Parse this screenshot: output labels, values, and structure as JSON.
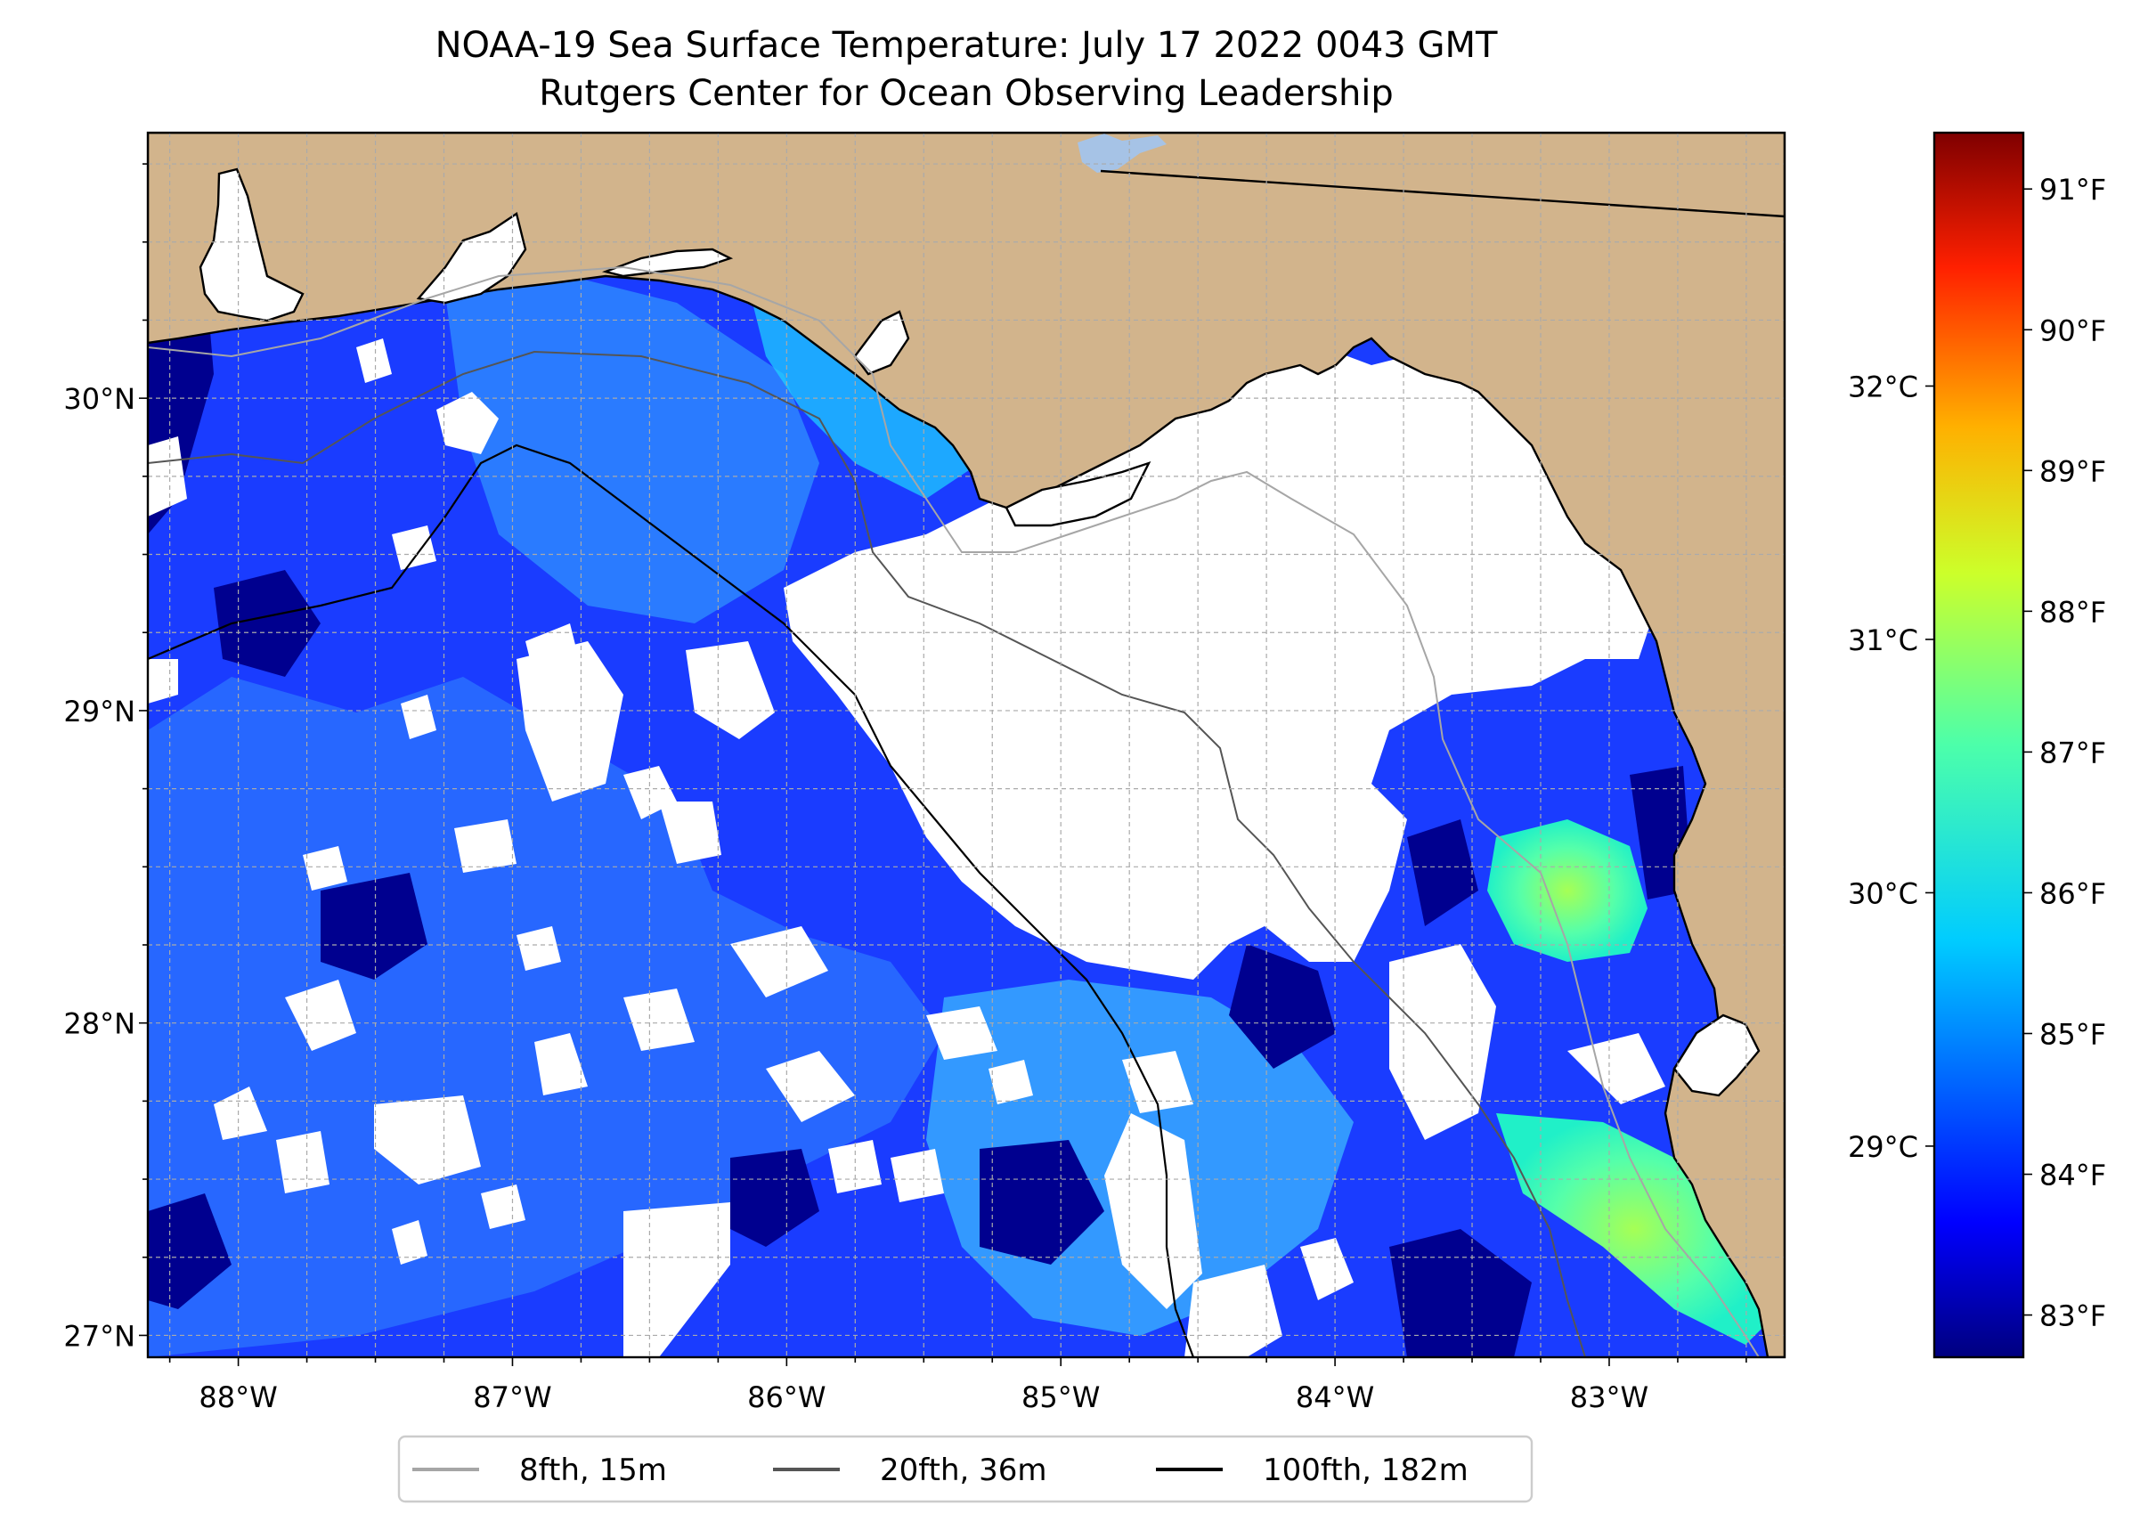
{
  "title": {
    "line1": "NOAA-19 Sea Surface Temperature: July 17 2022 0043 GMT",
    "line2": "Rutgers Center for Ocean Observing Leadership"
  },
  "map": {
    "lon_range": [
      -88.33,
      -82.36
    ],
    "lat_range": [
      26.93,
      30.85
    ],
    "lon_ticks": [
      {
        "value": -88,
        "label": "88°W"
      },
      {
        "value": -87,
        "label": "87°W"
      },
      {
        "value": -86,
        "label": "86°W"
      },
      {
        "value": -85,
        "label": "85°W"
      },
      {
        "value": -84,
        "label": "84°W"
      },
      {
        "value": -83,
        "label": "83°W"
      }
    ],
    "lat_ticks": [
      {
        "value": 30,
        "label": "30°N"
      },
      {
        "value": 29,
        "label": "29°N"
      },
      {
        "value": 28,
        "label": "28°N"
      },
      {
        "value": 27,
        "label": "27°N"
      }
    ],
    "colors": {
      "land": "#d2b48c",
      "no_data": "#ffffff",
      "gridline": "#aaaaaa",
      "lake": "#a6c3e6"
    }
  },
  "colorbar": {
    "fahrenheit_ticks": [
      "91°F",
      "90°F",
      "89°F",
      "88°F",
      "87°F",
      "86°F",
      "85°F",
      "84°F",
      "83°F"
    ],
    "fahrenheit_values": [
      91,
      90,
      89,
      88,
      87,
      86,
      85,
      84,
      83
    ],
    "celsius_ticks": [
      "32°C",
      "31°C",
      "30°C",
      "29°C"
    ],
    "celsius_values": [
      32,
      31,
      30,
      29
    ],
    "range_f": [
      82.7,
      91.4
    ],
    "colormap": "jet"
  },
  "legend": {
    "items": [
      {
        "label": "8fth, 15m",
        "color": "#a6a6a6"
      },
      {
        "label": "20fth, 36m",
        "color": "#555555"
      },
      {
        "label": "100fth, 182m",
        "color": "#000000"
      }
    ]
  }
}
